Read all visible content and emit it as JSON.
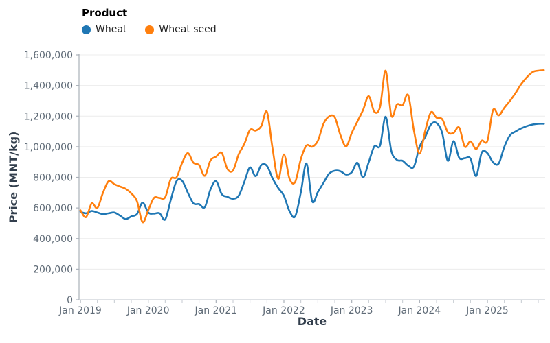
{
  "legend": {
    "title": "Product",
    "items": [
      {
        "label": "Wheat",
        "color": "#1f77b4"
      },
      {
        "label": "Wheat seed",
        "color": "#ff7f0e"
      }
    ]
  },
  "axes": {
    "x_title": "Date",
    "y_title": "Price (MNT/kg)",
    "x_tick_labels": [
      "Jan 2019",
      "Jan 2020",
      "Jan 2021",
      "Jan 2022",
      "Jan 2023",
      "Jan 2024",
      "Jan 2025"
    ],
    "y_tick_labels": [
      "0",
      "200,000",
      "400,000",
      "600,000",
      "800,000",
      "1,000,000",
      "1,200,000",
      "1,400,000",
      "1,600,000"
    ]
  },
  "chart_data": {
    "type": "line",
    "title": "",
    "xlabel": "Date",
    "ylabel": "Price (MNT/kg)",
    "ylim": [
      0,
      1600000
    ],
    "y_tick_step": 200000,
    "grid": "horizontal-only",
    "legend_position": "top-left",
    "legend_title": "Product",
    "x_frequency": "monthly",
    "x": [
      "2019-01",
      "2019-02",
      "2019-03",
      "2019-04",
      "2019-05",
      "2019-06",
      "2019-07",
      "2019-08",
      "2019-09",
      "2019-10",
      "2019-11",
      "2019-12",
      "2020-01",
      "2020-02",
      "2020-03",
      "2020-04",
      "2020-05",
      "2020-06",
      "2020-07",
      "2020-08",
      "2020-09",
      "2020-10",
      "2020-11",
      "2020-12",
      "2021-01",
      "2021-02",
      "2021-03",
      "2021-04",
      "2021-05",
      "2021-06",
      "2021-07",
      "2021-08",
      "2021-09",
      "2021-10",
      "2021-11",
      "2021-12",
      "2022-01",
      "2022-02",
      "2022-03",
      "2022-04",
      "2022-05",
      "2022-06",
      "2022-07",
      "2022-08",
      "2022-09",
      "2022-10",
      "2022-11",
      "2022-12",
      "2023-01",
      "2023-02",
      "2023-03",
      "2023-04",
      "2023-05",
      "2023-06",
      "2023-07",
      "2023-08",
      "2023-09",
      "2023-10",
      "2023-11",
      "2023-12",
      "2024-01",
      "2024-02",
      "2024-03",
      "2024-04",
      "2024-05",
      "2024-06",
      "2024-07",
      "2024-08",
      "2024-09",
      "2024-10",
      "2024-11",
      "2024-12",
      "2025-01",
      "2025-02",
      "2025-03",
      "2025-04",
      "2025-05",
      "2025-06",
      "2025-07",
      "2025-08",
      "2025-09",
      "2025-10",
      "2025-11"
    ],
    "series": [
      {
        "name": "Wheat",
        "color": "#1f77b4",
        "values": [
          575000,
          565000,
          580000,
          570000,
          560000,
          565000,
          570000,
          550000,
          527000,
          545000,
          560000,
          635000,
          570000,
          563000,
          565000,
          525000,
          655000,
          775000,
          777000,
          700000,
          630000,
          625000,
          605000,
          720000,
          775000,
          690000,
          673000,
          660000,
          680000,
          770000,
          865000,
          808000,
          880000,
          875000,
          793000,
          730000,
          680000,
          578000,
          545000,
          703000,
          890000,
          644000,
          703000,
          764000,
          824000,
          843000,
          840000,
          818000,
          833000,
          895000,
          800000,
          898000,
          1003000,
          1007000,
          1196000,
          973000,
          914000,
          908000,
          876000,
          870000,
          1000000,
          1065000,
          1145000,
          1155000,
          1090000,
          908000,
          1036000,
          928000,
          925000,
          923000,
          808000,
          962000,
          958000,
          898000,
          890000,
          1000000,
          1075000,
          1100000,
          1120000,
          1135000,
          1145000,
          1150000,
          1150000
        ]
      },
      {
        "name": "Wheat seed",
        "color": "#ff7f0e",
        "values": [
          585000,
          540000,
          630000,
          600000,
          700000,
          775000,
          755000,
          740000,
          725000,
          695000,
          645000,
          507000,
          585000,
          665000,
          665000,
          670000,
          790000,
          800000,
          895000,
          958000,
          895000,
          880000,
          810000,
          910000,
          935000,
          960000,
          855000,
          845000,
          950000,
          1018000,
          1110000,
          1105000,
          1135000,
          1228000,
          985000,
          790000,
          950000,
          790000,
          770000,
          920000,
          1008000,
          1000000,
          1038000,
          1150000,
          1198000,
          1192000,
          1076000,
          1002000,
          1090000,
          1165000,
          1240000,
          1330000,
          1228000,
          1260000,
          1497000,
          1203000,
          1276000,
          1272000,
          1336000,
          1105000,
          955000,
          1105000,
          1225000,
          1190000,
          1180000,
          1095000,
          1090000,
          1125000,
          1000000,
          1035000,
          985000,
          1040000,
          1038000,
          1240000,
          1205000,
          1255000,
          1300000,
          1352000,
          1410000,
          1455000,
          1488000,
          1497000,
          1500000
        ]
      }
    ]
  },
  "colors": {
    "background": "#ffffff",
    "gridline": "#ececec",
    "left_spine": "#a9b0b8",
    "bottom_axis": "#c9cfd5",
    "tick_mark": "#aab1b9",
    "minor_tick_mark": "#c4cad0",
    "tick_label": "#5e6a76",
    "axis_title": "#333f4d"
  }
}
